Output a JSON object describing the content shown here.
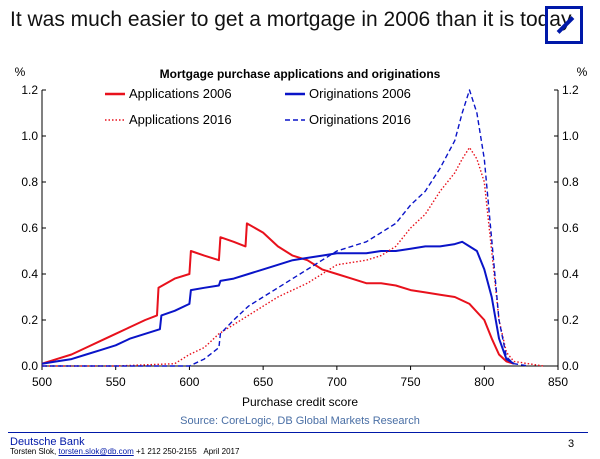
{
  "header": {
    "title": "It was much easier to get a mortgage in 2006 than it is today",
    "logo_name": "deutsche-bank-logo"
  },
  "footer": {
    "brand": "Deutsche Bank",
    "author": "Torsten Slok,",
    "email": "torsten.slok@db.com",
    "phone": "+1 212 250-2155",
    "date": "April 2017",
    "page": "3"
  },
  "chart_data": {
    "type": "line",
    "title": "Mortgage purchase applications and originations",
    "xlabel": "Purchase credit score",
    "ylabel_left": "%",
    "ylabel_right": "%",
    "source": "Source: CoreLogic, DB Global Markets Research",
    "xlim": [
      500,
      850
    ],
    "ylim": [
      0,
      1.2
    ],
    "x_ticks": [
      "500",
      "550",
      "600",
      "650",
      "700",
      "750",
      "800",
      "850"
    ],
    "y_ticks": [
      "0.0",
      "0.2",
      "0.4",
      "0.6",
      "0.8",
      "1.0",
      "1.2"
    ],
    "legend_placement": "top-left",
    "colors": {
      "red": "#e8111c",
      "blue": "#0a14c8"
    },
    "series": [
      {
        "name": "Applications 2006",
        "color": "#e8111c",
        "style": "solid",
        "x": [
          500,
          510,
          520,
          530,
          540,
          550,
          560,
          570,
          578,
          579,
          590,
          600,
          601,
          610,
          620,
          621,
          630,
          638,
          639,
          650,
          660,
          670,
          680,
          690,
          700,
          710,
          720,
          730,
          740,
          750,
          760,
          770,
          780,
          790,
          800,
          805,
          810,
          815,
          820
        ],
        "y": [
          0.01,
          0.03,
          0.05,
          0.08,
          0.11,
          0.14,
          0.17,
          0.2,
          0.22,
          0.34,
          0.38,
          0.4,
          0.5,
          0.48,
          0.46,
          0.56,
          0.54,
          0.52,
          0.62,
          0.58,
          0.52,
          0.48,
          0.46,
          0.42,
          0.4,
          0.38,
          0.36,
          0.36,
          0.35,
          0.33,
          0.32,
          0.31,
          0.3,
          0.27,
          0.2,
          0.12,
          0.05,
          0.02,
          0.01
        ]
      },
      {
        "name": "Originations 2006",
        "color": "#0a14c8",
        "style": "solid",
        "x": [
          500,
          510,
          520,
          530,
          540,
          550,
          560,
          570,
          580,
          581,
          590,
          600,
          601,
          610,
          620,
          621,
          630,
          640,
          650,
          660,
          670,
          680,
          690,
          700,
          710,
          720,
          730,
          740,
          750,
          760,
          770,
          780,
          785,
          790,
          795,
          800,
          805,
          810,
          815,
          820
        ],
        "y": [
          0.01,
          0.02,
          0.03,
          0.05,
          0.07,
          0.09,
          0.12,
          0.14,
          0.16,
          0.22,
          0.24,
          0.27,
          0.33,
          0.34,
          0.35,
          0.37,
          0.38,
          0.4,
          0.42,
          0.44,
          0.46,
          0.47,
          0.48,
          0.49,
          0.49,
          0.49,
          0.5,
          0.5,
          0.51,
          0.52,
          0.52,
          0.53,
          0.54,
          0.52,
          0.5,
          0.42,
          0.3,
          0.12,
          0.03,
          0.01
        ]
      },
      {
        "name": "Applications 2016",
        "color": "#e8111c",
        "style": "dotted",
        "x": [
          500,
          550,
          590,
          600,
          610,
          620,
          630,
          640,
          650,
          660,
          670,
          680,
          690,
          700,
          710,
          720,
          730,
          740,
          750,
          760,
          770,
          780,
          785,
          790,
          795,
          800,
          805,
          810,
          815,
          820,
          830,
          840
        ],
        "y": [
          0.0,
          0.0,
          0.01,
          0.05,
          0.08,
          0.14,
          0.18,
          0.22,
          0.26,
          0.3,
          0.33,
          0.36,
          0.4,
          0.44,
          0.45,
          0.46,
          0.48,
          0.52,
          0.6,
          0.66,
          0.76,
          0.84,
          0.9,
          0.95,
          0.9,
          0.8,
          0.5,
          0.2,
          0.06,
          0.02,
          0.01,
          0.0
        ]
      },
      {
        "name": "Originations 2016",
        "color": "#0a14c8",
        "style": "dashed",
        "x": [
          500,
          560,
          600,
          610,
          620,
          621,
          630,
          640,
          650,
          660,
          670,
          680,
          690,
          700,
          710,
          720,
          730,
          740,
          750,
          760,
          770,
          780,
          785,
          790,
          795,
          800,
          805,
          810,
          815,
          820,
          830
        ],
        "y": [
          0.0,
          0.0,
          0.0,
          0.03,
          0.08,
          0.14,
          0.2,
          0.26,
          0.3,
          0.34,
          0.38,
          0.42,
          0.46,
          0.5,
          0.52,
          0.54,
          0.58,
          0.62,
          0.7,
          0.76,
          0.86,
          0.98,
          1.1,
          1.2,
          1.1,
          0.9,
          0.55,
          0.2,
          0.04,
          0.01,
          0.0
        ]
      }
    ]
  }
}
